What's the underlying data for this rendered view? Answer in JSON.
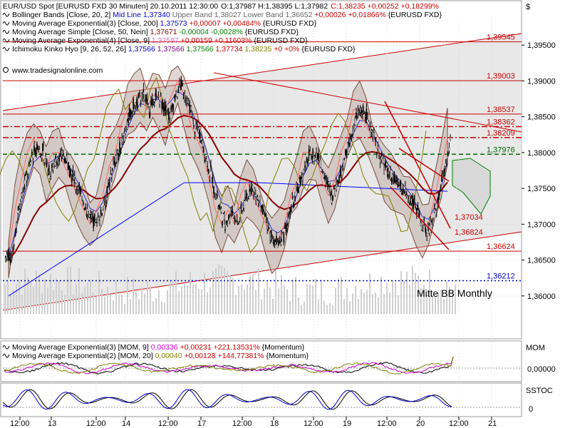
{
  "header": {
    "title": "EUR/USD Spot [EURUSD FXD  30 Minuten] 20.10.2011 12:30:00",
    "ohlc": "O:1,37987 H:1,38395 L:1,37982",
    "close": "C:1,38235 +0,00252 +0,18299%"
  },
  "legend": [
    {
      "parts": [
        {
          "t": "Bollinger Bands [Close, 20, 2] ",
          "c": "#000000"
        },
        {
          "t": "Mid Line 1,37340 ",
          "c": "#0000cc"
        },
        {
          "t": "Upper Band 1,38027 Lower Band 1,36652 ",
          "c": "#666666"
        },
        {
          "t": "+0,00026 +0,01866% ",
          "c": "#cc0000"
        },
        {
          "t": "{EURUSD FXD}",
          "c": "#000000"
        }
      ]
    },
    {
      "parts": [
        {
          "t": "Moving Average Exponential(3) [Close, 200] ",
          "c": "#000000"
        },
        {
          "t": "1,37573 ",
          "c": "#0000cc"
        },
        {
          "t": "+0,00007 +0,00484% ",
          "c": "#cc0000"
        },
        {
          "t": "{EURUSD FXD}",
          "c": "#000000"
        }
      ]
    },
    {
      "parts": [
        {
          "t": "Moving Average Simple [Close, 50, Nein] ",
          "c": "#000000"
        },
        {
          "t": "1,37671 ",
          "c": "#800000"
        },
        {
          "t": "-0,00004 -0,0028% ",
          "c": "#008000"
        },
        {
          "t": "{EURUSD FXD}",
          "c": "#000000"
        }
      ]
    },
    {
      "parts": [
        {
          "t": "Moving Average Exponential(4) [Close, 9] ",
          "c": "#000000"
        },
        {
          "t": "1,37597 ",
          "c": "#cc66cc"
        },
        {
          "t": "+0,00159 +0,11603% ",
          "c": "#cc0000"
        },
        {
          "t": "{EURUSD FXD}",
          "c": "#000000"
        }
      ]
    },
    {
      "parts": [
        {
          "t": "Ichimoku Kinko Hyo [9, 26, 52, 26] ",
          "c": "#000000"
        },
        {
          "t": "1,37566 ",
          "c": "#0000cc"
        },
        {
          "t": "1,37566 ",
          "c": "#800080"
        },
        {
          "t": "1,37566 ",
          "c": "#008000"
        },
        {
          "t": "1,37734 ",
          "c": "#cc0000"
        },
        {
          "t": "1,38235 ",
          "c": "#808000"
        },
        {
          "t": "+0 +0% ",
          "c": "#cc0000"
        },
        {
          "t": "{EURUSD FXD}",
          "c": "#000000"
        }
      ]
    }
  ],
  "watermark": "www.tradesignalonline.com",
  "currency_symbol": "$",
  "annotation": "Mitte BB Monthly",
  "mom_panel": {
    "label": "MOM",
    "legend": [
      {
        "parts": [
          {
            "t": "Moving Average Exponential(3) [MOM, 9] ",
            "c": "#000000"
          },
          {
            "t": "0,00336 ",
            "c": "#cc00cc"
          },
          {
            "t": "+0,00231 +221,13531% ",
            "c": "#cc0000"
          },
          {
            "t": "{Momentum}",
            "c": "#000000"
          }
        ]
      },
      {
        "parts": [
          {
            "t": "Moving Average Exponential(2) [MOM, 20] ",
            "c": "#000000"
          },
          {
            "t": "0,00040 ",
            "c": "#808000"
          },
          {
            "t": "+0,00128 +144,77381% ",
            "c": "#cc0000"
          },
          {
            "t": "{Momentum}",
            "c": "#000000"
          }
        ]
      }
    ],
    "tick": "0,00000"
  },
  "sstoc_panel": {
    "label": "SSTOC",
    "tick": "0"
  },
  "chart_data": {
    "type": "candlestick",
    "y_ticks": [
      "1,39500",
      "1,39000",
      "1,38500",
      "1,38000",
      "1,37500",
      "1,37000",
      "1,36500",
      "1,36000"
    ],
    "x_ticks": [
      "12:00",
      "13",
      "12:00",
      "14",
      "12:00",
      "17",
      "12:00",
      "18",
      "12:00",
      "19",
      "12:00",
      "20",
      "12:00",
      "21"
    ],
    "ylim": [
      1.356,
      1.399
    ],
    "levels": [
      {
        "label": "1,39545",
        "value": 1.39545,
        "color": "#cc0000",
        "style": "solid"
      },
      {
        "label": "1,39003",
        "value": 1.39003,
        "color": "#cc0000",
        "style": "solid"
      },
      {
        "label": "1,38537",
        "value": 1.38537,
        "color": "#cc0000",
        "style": "solid"
      },
      {
        "label": "1,38362",
        "value": 1.38362,
        "color": "#cc0000",
        "style": "dashdot"
      },
      {
        "label": "1,38209",
        "value": 1.38209,
        "color": "#cc0000",
        "style": "dashdot"
      },
      {
        "label": "1,37976",
        "value": 1.37976,
        "color": "#006600",
        "style": "dashed"
      },
      {
        "label": "1,37034",
        "value": 1.37034,
        "color": "#cc0000",
        "style": "none"
      },
      {
        "label": "1,36824",
        "value": 1.36824,
        "color": "#cc0000",
        "style": "none"
      },
      {
        "label": "1,36624",
        "value": 1.36624,
        "color": "#cc0000",
        "style": "solid"
      },
      {
        "label": "1,36212",
        "value": 1.36212,
        "color": "#0000cc",
        "style": "dotted"
      }
    ],
    "close_series": [
      1.365,
      1.372,
      1.376,
      1.379,
      1.381,
      1.38,
      1.377,
      1.379,
      1.38,
      1.378,
      1.376,
      1.374,
      1.372,
      1.37,
      1.371,
      1.374,
      1.378,
      1.38,
      1.383,
      1.386,
      1.387,
      1.388,
      1.386,
      1.388,
      1.387,
      1.385,
      1.388,
      1.3895,
      1.387,
      1.384,
      1.382,
      1.379,
      1.376,
      1.372,
      1.37,
      1.372,
      1.37,
      1.373,
      1.375,
      1.374,
      1.372,
      1.369,
      1.367,
      1.368,
      1.37,
      1.374,
      1.376,
      1.379,
      1.38,
      1.379,
      1.376,
      1.374,
      1.376,
      1.379,
      1.382,
      1.385,
      1.386,
      1.384,
      1.381,
      1.379,
      1.377,
      1.376,
      1.375,
      1.374,
      1.373,
      1.371,
      1.369,
      1.37,
      1.374,
      1.3775,
      1.3823
    ],
    "series": [
      {
        "name": "Bollinger Bands",
        "color": "#7a4a3a"
      },
      {
        "name": "Moving Average Exponential(3)",
        "color": "#0000ff"
      },
      {
        "name": "Moving Average Simple",
        "color": "#8b0000"
      },
      {
        "name": "Moving Average Exponential(4)",
        "color": "#cc66cc"
      },
      {
        "name": "Ichimoku Kinko Hyo",
        "color": "#008000"
      }
    ]
  }
}
